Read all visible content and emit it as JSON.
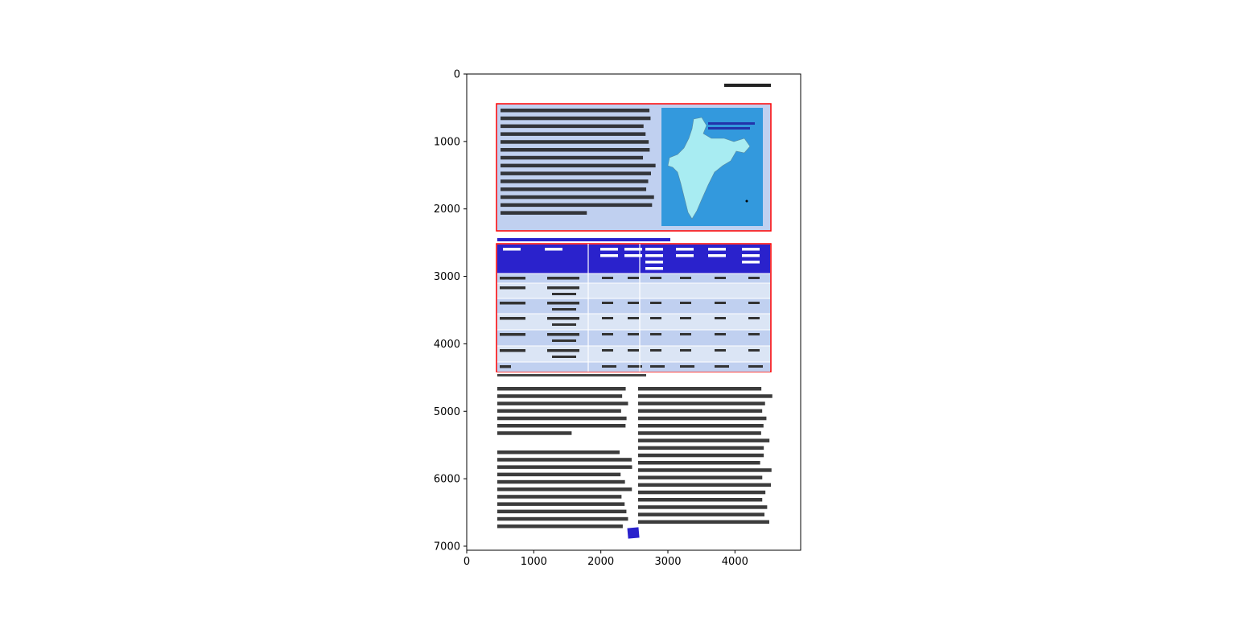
{
  "figure": {
    "x_ticks": [
      "0",
      "1000",
      "2000",
      "3000",
      "4000"
    ],
    "y_ticks": [
      "0",
      "1000",
      "2000",
      "3000",
      "4000",
      "5000",
      "6000",
      "7000"
    ],
    "x_range": [
      0,
      4980
    ],
    "y_range": [
      7060,
      0
    ]
  },
  "document": {
    "colors": {
      "highlight_box": "#ff0000",
      "panel_fill": "#c0d0f0",
      "table_header": "#2a22cc",
      "row_dark": "#c0d0f0",
      "row_light": "#dbe5f5",
      "map_sea": "#3399dd",
      "map_land": "#a8ecf2",
      "caption": "#2a22cc",
      "page_badge": "#2a22cc"
    },
    "map_icon": "india-map",
    "table_columns": 8,
    "table_rows": 7
  }
}
